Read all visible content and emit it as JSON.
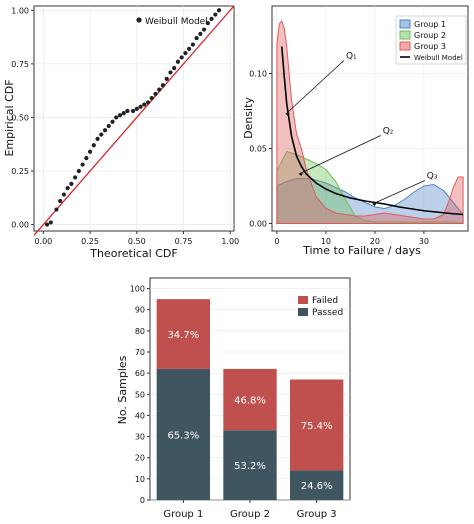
{
  "colors": {
    "group1": "#4f86c6",
    "group2": "#6dbf5a",
    "group3": "#e05a5a",
    "failed": "#c0504d",
    "passed": "#3f5660",
    "ref_line": "#d62728",
    "points": "#222222",
    "weibull": "#000000"
  },
  "chart_data": [
    {
      "type": "scatter",
      "title": "",
      "xlabel": "Theoretical CDF",
      "ylabel": "Empirical CDF",
      "xlim": [
        -0.05,
        1.02
      ],
      "ylim": [
        -0.03,
        1.02
      ],
      "xticks": [
        "0.00",
        "0.25",
        "0.50",
        "0.75",
        "1.00"
      ],
      "yticks": [
        "0.00",
        "0.25",
        "0.50",
        "0.75",
        "1.00"
      ],
      "grid": true,
      "legend_position": "top-center",
      "series": [
        {
          "name": "Weibull Model",
          "points": [
            [
              0.02,
              0.0
            ],
            [
              0.04,
              0.01
            ],
            [
              0.07,
              0.07
            ],
            [
              0.09,
              0.11
            ],
            [
              0.11,
              0.14
            ],
            [
              0.13,
              0.17
            ],
            [
              0.15,
              0.19
            ],
            [
              0.17,
              0.22
            ],
            [
              0.19,
              0.25
            ],
            [
              0.21,
              0.28
            ],
            [
              0.23,
              0.31
            ],
            [
              0.25,
              0.34
            ],
            [
              0.27,
              0.37
            ],
            [
              0.29,
              0.4
            ],
            [
              0.31,
              0.42
            ],
            [
              0.33,
              0.44
            ],
            [
              0.35,
              0.46
            ],
            [
              0.37,
              0.48
            ],
            [
              0.39,
              0.5
            ],
            [
              0.41,
              0.51
            ],
            [
              0.43,
              0.52
            ],
            [
              0.45,
              0.53
            ],
            [
              0.48,
              0.53
            ],
            [
              0.5,
              0.54
            ],
            [
              0.52,
              0.55
            ],
            [
              0.54,
              0.56
            ],
            [
              0.56,
              0.57
            ],
            [
              0.58,
              0.59
            ],
            [
              0.6,
              0.61
            ],
            [
              0.62,
              0.63
            ],
            [
              0.64,
              0.65
            ],
            [
              0.66,
              0.68
            ],
            [
              0.68,
              0.71
            ],
            [
              0.7,
              0.73
            ],
            [
              0.72,
              0.76
            ],
            [
              0.74,
              0.78
            ],
            [
              0.76,
              0.8
            ],
            [
              0.78,
              0.82
            ],
            [
              0.8,
              0.84
            ],
            [
              0.82,
              0.87
            ],
            [
              0.84,
              0.89
            ],
            [
              0.86,
              0.91
            ],
            [
              0.88,
              0.94
            ],
            [
              0.9,
              0.96
            ],
            [
              0.92,
              0.98
            ],
            [
              0.94,
              1.0
            ]
          ]
        }
      ],
      "reference_line": [
        [
          -0.05,
          -0.05
        ],
        [
          1.02,
          1.02
        ]
      ]
    },
    {
      "type": "area",
      "title": "",
      "xlabel": "Time to  Failure / days",
      "ylabel": "Density",
      "xlim": [
        -1,
        39
      ],
      "ylim": [
        -0.005,
        0.145
      ],
      "xticks": [
        "0",
        "10",
        "20",
        "30"
      ],
      "yticks": [
        "0.00",
        "0.05",
        "0.10"
      ],
      "grid": true,
      "legend_position": "top-right",
      "series": [
        {
          "name": "Group 1",
          "color_key": "group1",
          "x": [
            0,
            2,
            4,
            6,
            8,
            10,
            12,
            14,
            16,
            18,
            20,
            22,
            24,
            26,
            28,
            30,
            32,
            34,
            36,
            38
          ],
          "y": [
            0.025,
            0.028,
            0.03,
            0.03,
            0.029,
            0.027,
            0.024,
            0.021,
            0.017,
            0.014,
            0.011,
            0.01,
            0.012,
            0.016,
            0.021,
            0.025,
            0.026,
            0.022,
            0.014,
            0.006
          ]
        },
        {
          "name": "Group 2",
          "color_key": "group2",
          "x": [
            0,
            2,
            4,
            6,
            8,
            10,
            12,
            14,
            16,
            18,
            20,
            22,
            24,
            26,
            28,
            30,
            32,
            34,
            36,
            38
          ],
          "y": [
            0.035,
            0.048,
            0.046,
            0.043,
            0.04,
            0.036,
            0.028,
            0.016,
            0.005,
            0.002,
            0.001,
            0.001,
            0.001,
            0.001,
            0.001,
            0.001,
            0.001,
            0.001,
            0.001,
            0.0
          ]
        },
        {
          "name": "Group 3",
          "color_key": "group3",
          "x": [
            0,
            0.5,
            1,
            1.5,
            2,
            2.5,
            3,
            4,
            5,
            6,
            8,
            10,
            12,
            14,
            16,
            18,
            20,
            22,
            24,
            26,
            28,
            30,
            32,
            34,
            35,
            36,
            37,
            38
          ],
          "y": [
            0.12,
            0.133,
            0.135,
            0.13,
            0.118,
            0.1,
            0.082,
            0.06,
            0.05,
            0.036,
            0.018,
            0.01,
            0.007,
            0.006,
            0.005,
            0.005,
            0.006,
            0.007,
            0.006,
            0.005,
            0.004,
            0.003,
            0.003,
            0.006,
            0.014,
            0.024,
            0.031,
            0.031
          ]
        },
        {
          "name": "Weibull Model",
          "type": "line",
          "color_key": "weibull",
          "x": [
            1,
            1.5,
            2,
            3,
            4,
            5,
            6,
            8,
            10,
            12,
            15,
            18,
            20,
            22,
            25,
            28,
            30,
            33,
            36,
            38
          ],
          "y": [
            0.118,
            0.098,
            0.08,
            0.058,
            0.045,
            0.038,
            0.033,
            0.027,
            0.023,
            0.02,
            0.017,
            0.015,
            0.014,
            0.013,
            0.011,
            0.0095,
            0.0085,
            0.0075,
            0.0065,
            0.006
          ]
        }
      ],
      "annotations": [
        {
          "label": "Q₁",
          "point": [
            1.8,
            0.073
          ],
          "text_pos": [
            14.5,
            0.11
          ]
        },
        {
          "label": "Q₂",
          "point": [
            4.5,
            0.033
          ],
          "text_pos": [
            22.0,
            0.06
          ]
        },
        {
          "label": "Q₃",
          "point": [
            19.5,
            0.013
          ],
          "text_pos": [
            31.0,
            0.03
          ]
        }
      ]
    },
    {
      "type": "bar",
      "stacked": true,
      "title": "",
      "xlabel": "",
      "ylabel": "No. Samples",
      "ylim": [
        0,
        105
      ],
      "yticks": [
        "0",
        "10",
        "20",
        "30",
        "40",
        "50",
        "60",
        "70",
        "80",
        "90",
        "100"
      ],
      "categories": [
        "Group 1",
        "Group 2",
        "Group 3"
      ],
      "grid": true,
      "legend_position": "top-right",
      "series": [
        {
          "name": "Passed",
          "color_key": "passed",
          "values": [
            62,
            33,
            14
          ],
          "labels": [
            "65.3%",
            "53.2%",
            "24.6%"
          ]
        },
        {
          "name": "Failed",
          "color_key": "failed",
          "values": [
            33,
            29,
            43
          ],
          "labels": [
            "34.7%",
            "46.8%",
            "75.4%"
          ]
        }
      ]
    }
  ]
}
